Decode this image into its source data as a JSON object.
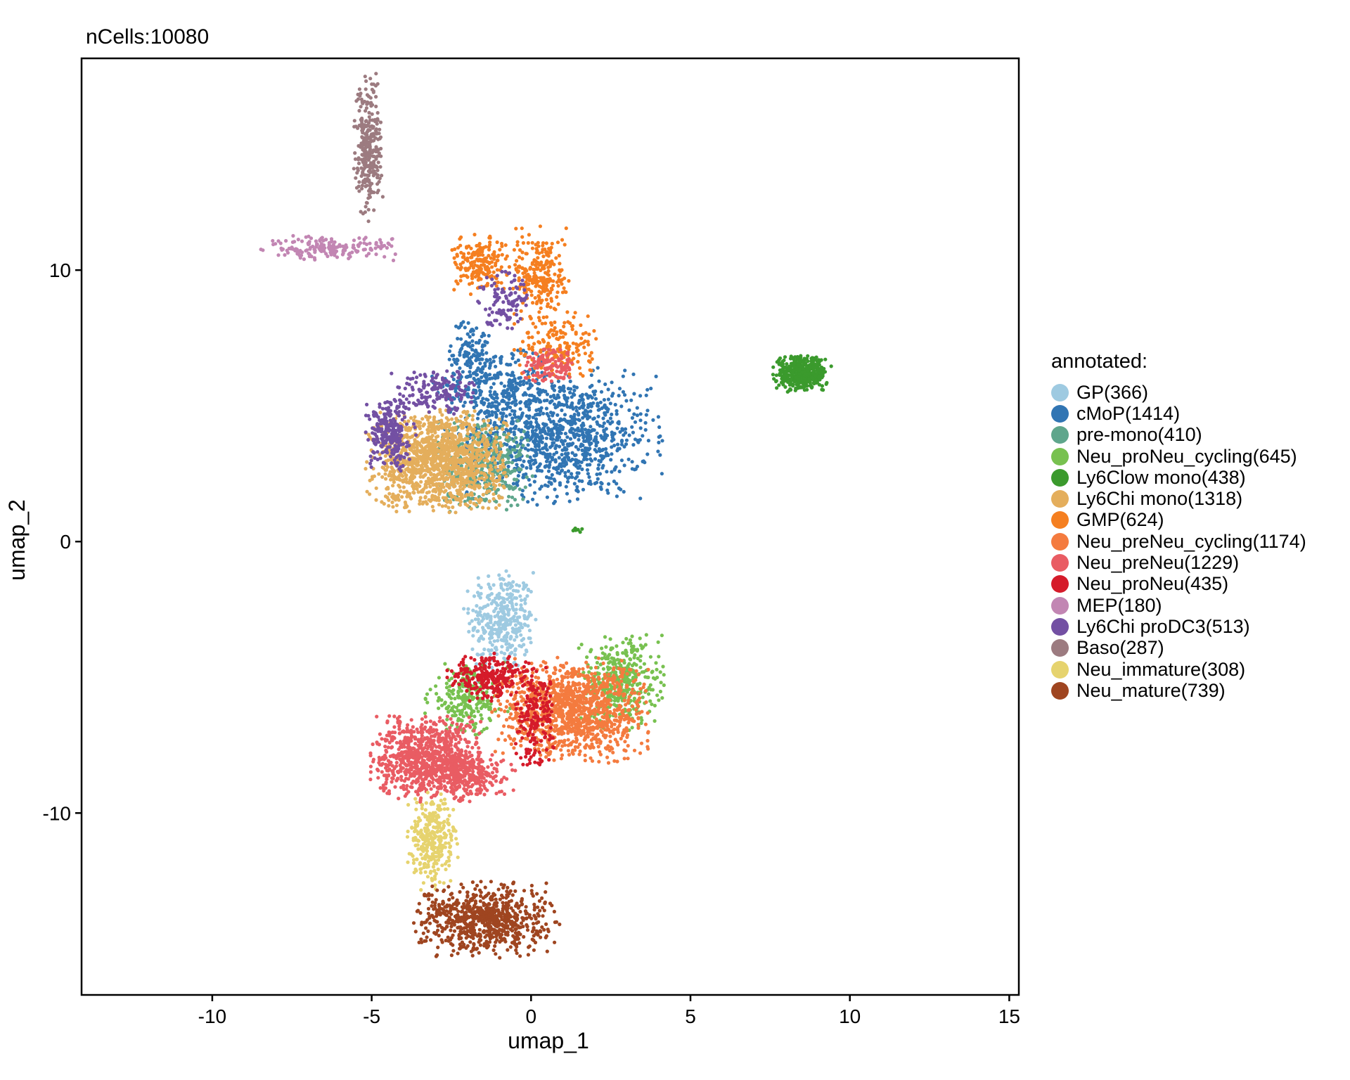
{
  "chart_data": {
    "type": "scatter",
    "title": "nCells:10080",
    "xlabel": "umap_1",
    "ylabel": "umap_2",
    "xlim": [
      -14.1,
      15.3
    ],
    "ylim": [
      -16.7,
      17.8
    ],
    "xticks": [
      -10,
      -5,
      0,
      5,
      10,
      15
    ],
    "yticks": [
      10,
      0,
      -10
    ],
    "grid": false,
    "legend_title": "annotated:",
    "legend_position": "right",
    "series": [
      {
        "name": "GP(366)",
        "color": "#9ecae1",
        "count": 366,
        "clusters": [
          {
            "cx": -0.9,
            "cy": -2.9,
            "sx": 0.5,
            "sy": 0.9,
            "n": 366
          }
        ]
      },
      {
        "name": "cMoP(1414)",
        "color": "#3175b3",
        "count": 1414,
        "clusters": [
          {
            "cx": 0.9,
            "cy": 3.9,
            "sx": 1.4,
            "sy": 1.1,
            "n": 1000
          },
          {
            "cx": -1.1,
            "cy": 5.6,
            "sx": 0.9,
            "sy": 0.8,
            "n": 300
          },
          {
            "cx": -1.9,
            "cy": 7.0,
            "sx": 0.3,
            "sy": 0.6,
            "n": 114
          }
        ]
      },
      {
        "name": "pre-mono(410)",
        "color": "#5fa68c",
        "count": 410,
        "clusters": [
          {
            "cx": -1.5,
            "cy": 2.9,
            "sx": 0.7,
            "sy": 0.8,
            "n": 410
          }
        ]
      },
      {
        "name": "Neu_proNeu_cycling(645)",
        "color": "#78c150",
        "count": 645,
        "clusters": [
          {
            "cx": 2.8,
            "cy": -5.2,
            "sx": 0.6,
            "sy": 0.8,
            "n": 420
          },
          {
            "cx": -2.0,
            "cy": -5.8,
            "sx": 0.6,
            "sy": 0.6,
            "n": 225
          }
        ]
      },
      {
        "name": "Ly6Clow mono(438)",
        "color": "#3b9a2d",
        "count": 438,
        "clusters": [
          {
            "cx": 8.5,
            "cy": 6.2,
            "sx": 0.4,
            "sy": 0.3,
            "n": 430
          },
          {
            "cx": 1.5,
            "cy": 0.4,
            "sx": 0.1,
            "sy": 0.05,
            "n": 8
          }
        ]
      },
      {
        "name": "Ly6Chi mono(1318)",
        "color": "#e4ae5c",
        "count": 1318,
        "clusters": [
          {
            "cx": -2.9,
            "cy": 3.0,
            "sx": 1.0,
            "sy": 0.85,
            "n": 1318
          }
        ]
      },
      {
        "name": "GMP(624)",
        "color": "#f57f20",
        "count": 624,
        "clusters": [
          {
            "cx": -1.6,
            "cy": 10.2,
            "sx": 0.4,
            "sy": 0.5,
            "n": 200
          },
          {
            "cx": 0.3,
            "cy": 9.8,
            "sx": 0.4,
            "sy": 0.8,
            "n": 250
          },
          {
            "cx": 0.8,
            "cy": 7.2,
            "sx": 0.6,
            "sy": 0.6,
            "n": 174
          }
        ]
      },
      {
        "name": "Neu_preNeu_cycling(1174)",
        "color": "#f47b3f",
        "count": 1174,
        "clusters": [
          {
            "cx": 1.3,
            "cy": -6.2,
            "sx": 1.1,
            "sy": 0.85,
            "n": 1174
          }
        ]
      },
      {
        "name": "Neu_preNeu(1229)",
        "color": "#e95c63",
        "count": 1229,
        "clusters": [
          {
            "cx": -3.2,
            "cy": -8.0,
            "sx": 0.8,
            "sy": 0.7,
            "n": 900
          },
          {
            "cx": -1.8,
            "cy": -8.6,
            "sx": 0.6,
            "sy": 0.4,
            "n": 200
          },
          {
            "cx": 0.6,
            "cy": 6.5,
            "sx": 0.4,
            "sy": 0.3,
            "n": 129
          }
        ]
      },
      {
        "name": "Neu_proNeu(435)",
        "color": "#d51b2a",
        "count": 435,
        "clusters": [
          {
            "cx": -1.3,
            "cy": -5.0,
            "sx": 0.6,
            "sy": 0.4,
            "n": 250
          },
          {
            "cx": 0.1,
            "cy": -6.5,
            "sx": 0.3,
            "sy": 0.9,
            "n": 185
          }
        ]
      },
      {
        "name": "MEP(180)",
        "color": "#c286b3",
        "count": 180,
        "clusters": [
          {
            "cx": -6.3,
            "cy": 10.8,
            "sx": 1.0,
            "sy": 0.2,
            "n": 180
          }
        ]
      },
      {
        "name": "Ly6Chi proDC3(513)",
        "color": "#7350a3",
        "count": 513,
        "clusters": [
          {
            "cx": -4.4,
            "cy": 3.9,
            "sx": 0.35,
            "sy": 0.6,
            "n": 250
          },
          {
            "cx": -3.0,
            "cy": 5.5,
            "sx": 0.6,
            "sy": 0.4,
            "n": 160
          },
          {
            "cx": -0.8,
            "cy": 9.0,
            "sx": 0.4,
            "sy": 0.5,
            "n": 103
          }
        ]
      },
      {
        "name": "Baso(287)",
        "color": "#9c7b80",
        "count": 287,
        "clusters": [
          {
            "cx": -5.1,
            "cy": 14.5,
            "sx": 0.2,
            "sy": 1.2,
            "n": 287
          }
        ]
      },
      {
        "name": "Neu_immature(308)",
        "color": "#e6d36e",
        "count": 308,
        "clusters": [
          {
            "cx": -3.1,
            "cy": -11.0,
            "sx": 0.35,
            "sy": 0.8,
            "n": 308
          }
        ]
      },
      {
        "name": "Neu_mature(739)",
        "color": "#9f4520",
        "count": 739,
        "clusters": [
          {
            "cx": -1.4,
            "cy": -13.9,
            "sx": 1.0,
            "sy": 0.6,
            "n": 739
          }
        ]
      }
    ]
  }
}
